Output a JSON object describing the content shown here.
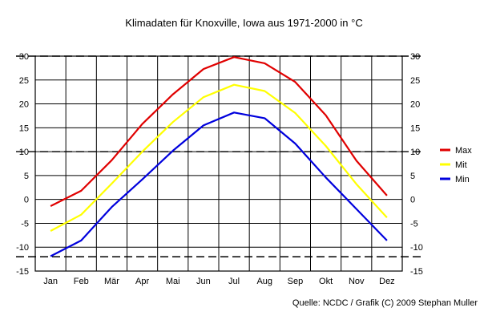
{
  "chart_data": {
    "type": "line",
    "title": "Klimadaten für Knoxville, Iowa aus 1971-2000 in °C",
    "source": "Quelle: NCDC / Grafik (C) 2009 Stephan Muller",
    "categories": [
      "Jan",
      "Feb",
      "Mär",
      "Apr",
      "Mai",
      "Jun",
      "Jul",
      "Aug",
      "Sep",
      "Okt",
      "Nov",
      "Dez"
    ],
    "ylim": [
      -15,
      30
    ],
    "yticks": [
      -15,
      -10,
      -5,
      0,
      5,
      10,
      15,
      20,
      25,
      30
    ],
    "dashed_lines": [
      30,
      10,
      -12
    ],
    "grid": true,
    "legend_position": "right",
    "series": [
      {
        "name": "Max",
        "color": "#e00000",
        "values": [
          -1.4,
          1.8,
          8.2,
          15.8,
          22.0,
          27.3,
          29.8,
          28.5,
          24.6,
          17.6,
          8.1,
          0.8
        ]
      },
      {
        "name": "Mit",
        "color": "#ffff00",
        "values": [
          -6.6,
          -3.2,
          3.3,
          10.0,
          16.2,
          21.4,
          24.0,
          22.7,
          18.1,
          11.2,
          3.2,
          -3.8
        ]
      },
      {
        "name": "Min",
        "color": "#0000dd",
        "values": [
          -11.9,
          -8.6,
          -1.6,
          4.2,
          10.2,
          15.5,
          18.2,
          17.0,
          11.7,
          4.6,
          -2.0,
          -8.6
        ]
      }
    ]
  }
}
